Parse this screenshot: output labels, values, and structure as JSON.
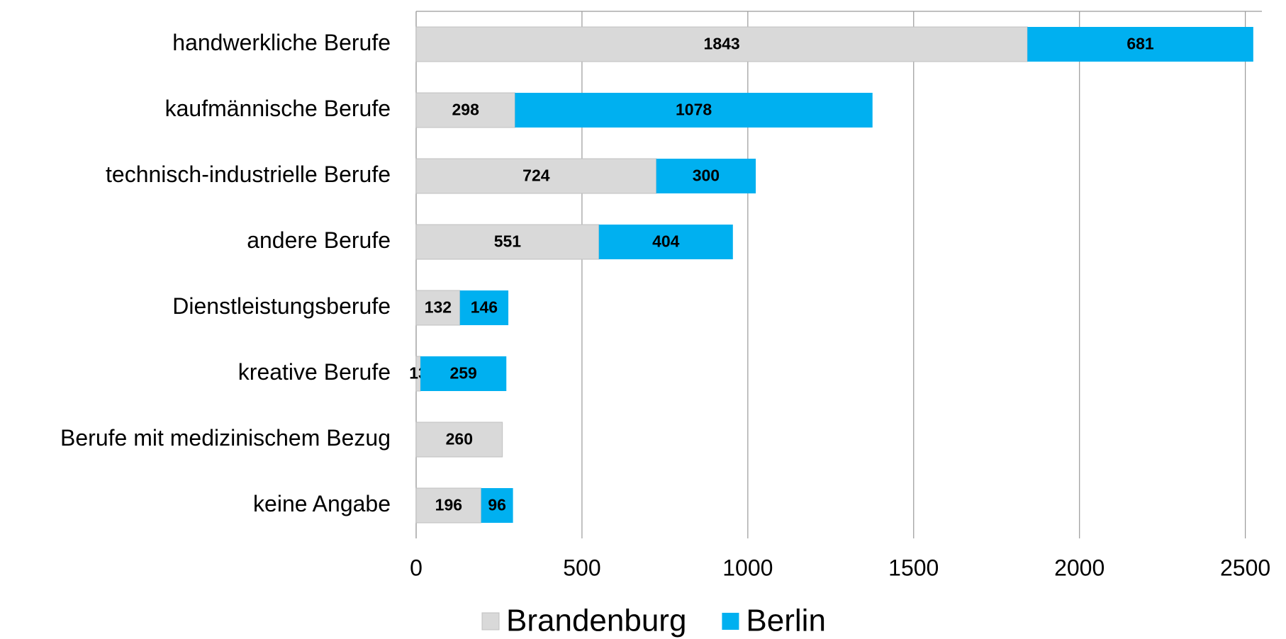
{
  "chart_data": {
    "type": "stacked-bar-horizontal",
    "categories": [
      "handwerkliche Berufe",
      "kaufmännische Berufe",
      "technisch-industrielle Berufe",
      "andere Berufe",
      "Dienstleistungsberufe",
      "kreative Berufe",
      "Berufe mit medizinischem Bezug",
      "keine Angabe"
    ],
    "series": [
      {
        "name": "Brandenburg",
        "color": "#d9d9d9",
        "values": [
          1843,
          298,
          724,
          551,
          132,
          13,
          260,
          196
        ]
      },
      {
        "name": "Berlin",
        "color": "#00b0f0",
        "values": [
          681,
          1078,
          300,
          404,
          146,
          259,
          null,
          96
        ]
      }
    ],
    "xlim": [
      0,
      2550
    ],
    "xticks": [
      0,
      500,
      1000,
      1500,
      2000,
      2500
    ],
    "grid": true,
    "legend": "bottom"
  }
}
